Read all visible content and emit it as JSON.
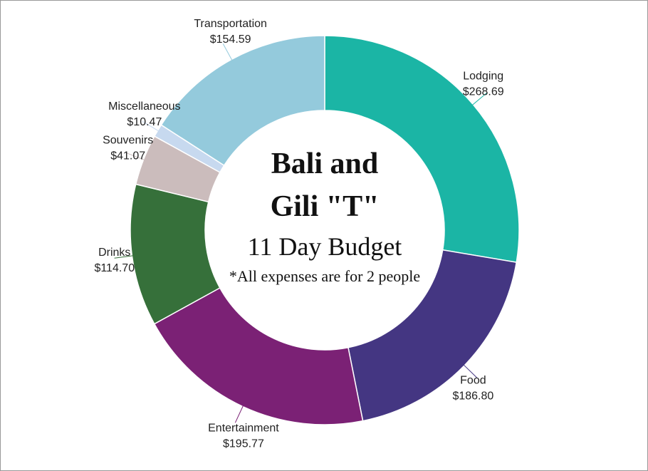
{
  "chart_data": {
    "type": "donut",
    "title": [
      "Bali and",
      "Gili \"T\""
    ],
    "subtitle": "11 Day Budget",
    "note": "*All expenses are for 2 people",
    "categories": [
      "Lodging",
      "Food",
      "Entertainment",
      "Drinks",
      "Souvenirs",
      "Miscellaneous",
      "Transportation"
    ],
    "values": [
      268.69,
      186.8,
      195.77,
      114.7,
      41.07,
      10.47,
      154.59
    ],
    "value_labels": [
      "$268.69",
      "$186.80",
      "$195.77",
      "$114.70",
      "$41.07",
      "$10.47",
      "$154.59"
    ],
    "colors": [
      "#1bb5a5",
      "#443682",
      "#7b2175",
      "#36703a",
      "#cbbcbc",
      "#c7d9ef",
      "#94cadc"
    ]
  }
}
